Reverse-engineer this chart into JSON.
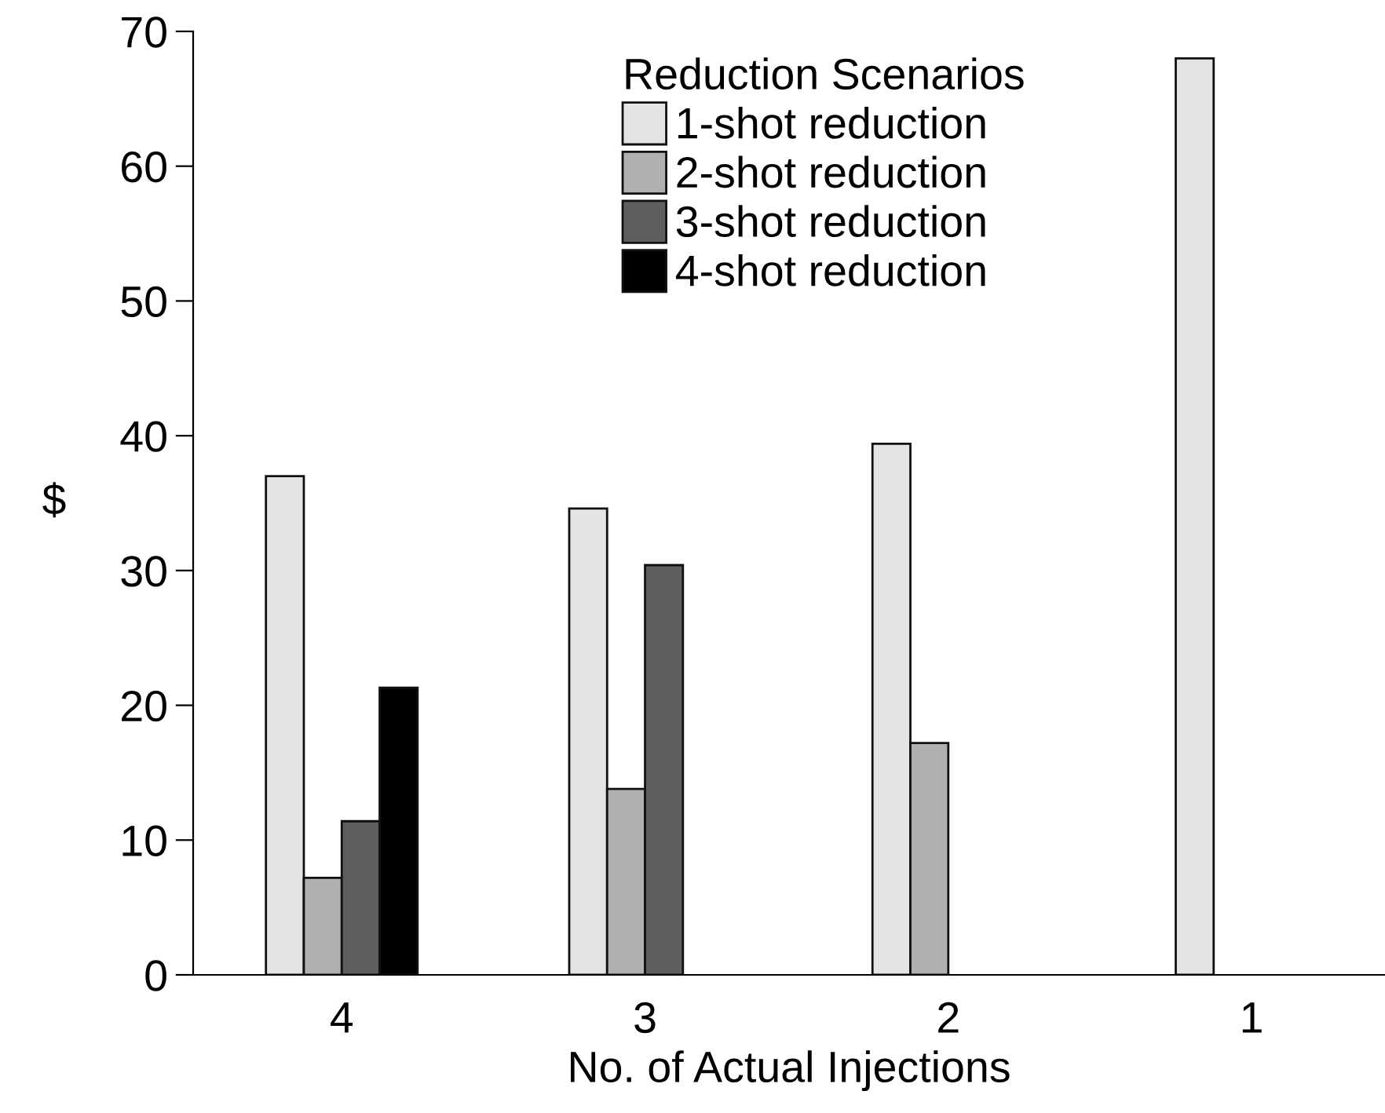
{
  "chart_data": {
    "type": "bar",
    "xlabel": "No. of Actual Injections",
    "ylabel": "$",
    "legend_title": "Reduction Scenarios",
    "categories": [
      "4",
      "3",
      "2",
      "1"
    ],
    "series": [
      {
        "name": "1-shot reduction",
        "color": "#e4e4e4",
        "values": [
          37,
          34.6,
          39.4,
          68
        ]
      },
      {
        "name": "2-shot reduction",
        "color": "#b0b0b0",
        "values": [
          7.2,
          13.8,
          17.2,
          null
        ]
      },
      {
        "name": "3-shot reduction",
        "color": "#5e5e5e",
        "values": [
          11.4,
          30.4,
          null,
          null
        ]
      },
      {
        "name": "4-shot reduction",
        "color": "#000000",
        "values": [
          21.3,
          null,
          null,
          null
        ]
      }
    ],
    "ylim": [
      0,
      70
    ],
    "yticks": [
      0,
      10,
      20,
      30,
      40,
      50,
      60,
      70
    ],
    "grid": false,
    "legend": "top right"
  }
}
